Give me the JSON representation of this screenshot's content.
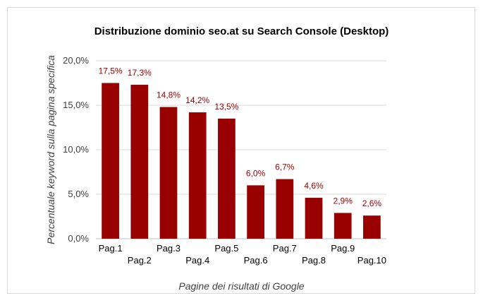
{
  "chart_data": {
    "type": "bar",
    "title": "Distribuzione dominio seo.at su Search Console (Desktop)",
    "xlabel": "Pagine dei risultati di Google",
    "ylabel": "Percentuale keyword sulla pagina specifica",
    "categories": [
      "Pag.1",
      "Pag.2",
      "Pag.3",
      "Pag.4",
      "Pag.5",
      "Pag.6",
      "Pag.7",
      "Pag.8",
      "Pag.9",
      "Pag.10"
    ],
    "values": [
      17.5,
      17.3,
      14.8,
      14.2,
      13.5,
      6.0,
      6.7,
      4.6,
      2.9,
      2.6
    ],
    "data_labels": [
      "17,5%",
      "17,3%",
      "14,8%",
      "14,2%",
      "13,5%",
      "6,0%",
      "6,7%",
      "4,6%",
      "2,9%",
      "2,6%"
    ],
    "ylim": [
      0,
      20
    ],
    "yticks": [
      0,
      5,
      10,
      15,
      20
    ],
    "ytick_labels": [
      "0,0%",
      "5,0%",
      "10,0%",
      "15,0%",
      "20,0%"
    ],
    "grid": true,
    "bar_color": "#990000",
    "label_color": "#a00000"
  }
}
